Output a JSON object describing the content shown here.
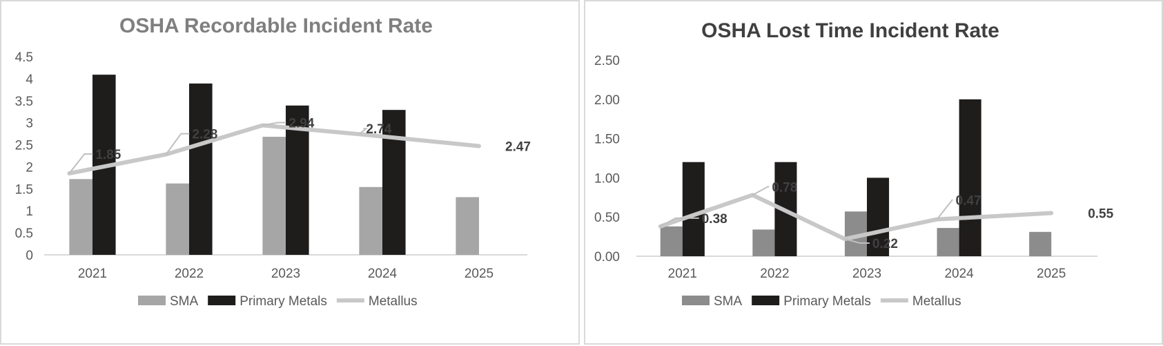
{
  "chart_data": [
    {
      "type": "bar",
      "title": "OSHA Recordable Incident Rate",
      "title_color": "#7f7f7f",
      "categories": [
        "2021",
        "2022",
        "2023",
        "2024",
        "2025"
      ],
      "y_ticks": [
        "0",
        "0.5",
        "1",
        "1.5",
        "2",
        "2.5",
        "3",
        "3.5",
        "4",
        "4.5"
      ],
      "ylim": [
        0,
        4.5
      ],
      "series": [
        {
          "name": "SMA",
          "kind": "bar",
          "color": "#a6a6a6",
          "values": [
            1.72,
            1.62,
            2.68,
            1.54,
            1.31
          ]
        },
        {
          "name": "Primary Metals",
          "kind": "bar",
          "color": "#1f1c1c",
          "values": [
            4.09,
            3.89,
            3.39,
            3.29,
            null
          ]
        },
        {
          "name": "Metallus",
          "kind": "line",
          "color": "#c8c8c8",
          "values": [
            1.85,
            2.28,
            2.94,
            2.74,
            2.47
          ],
          "labels": [
            "1.85",
            "2.28",
            "2.94",
            "2.74",
            "2.47"
          ]
        }
      ],
      "legend": {
        "position": "bottom",
        "items": [
          "SMA",
          "Primary Metals",
          "Metallus"
        ]
      },
      "grid": false
    },
    {
      "type": "bar",
      "title": "OSHA  Lost Time Incident Rate",
      "title_color": "#404040",
      "categories": [
        "2021",
        "2022",
        "2023",
        "2024",
        "2025"
      ],
      "y_ticks": [
        "0.00",
        "0.50",
        "1.00",
        "1.50",
        "2.00",
        "2.50"
      ],
      "ylim": [
        0,
        2.5
      ],
      "series": [
        {
          "name": "SMA",
          "kind": "bar",
          "color": "#8c8c8c",
          "values": [
            0.38,
            0.34,
            0.57,
            0.36,
            0.31
          ]
        },
        {
          "name": "Primary Metals",
          "kind": "bar",
          "color": "#1f1c1c",
          "values": [
            1.2,
            1.2,
            1.0,
            2.0,
            null
          ]
        },
        {
          "name": "Metallus",
          "kind": "line",
          "color": "#c8c8c8",
          "values": [
            0.38,
            0.78,
            0.22,
            0.47,
            0.55
          ],
          "labels": [
            "0.38",
            "0.78",
            "0.22",
            "0.47",
            "0.55"
          ]
        }
      ],
      "legend": {
        "position": "bottom",
        "items": [
          "SMA",
          "Primary Metals",
          "Metallus"
        ]
      },
      "grid": false
    }
  ]
}
